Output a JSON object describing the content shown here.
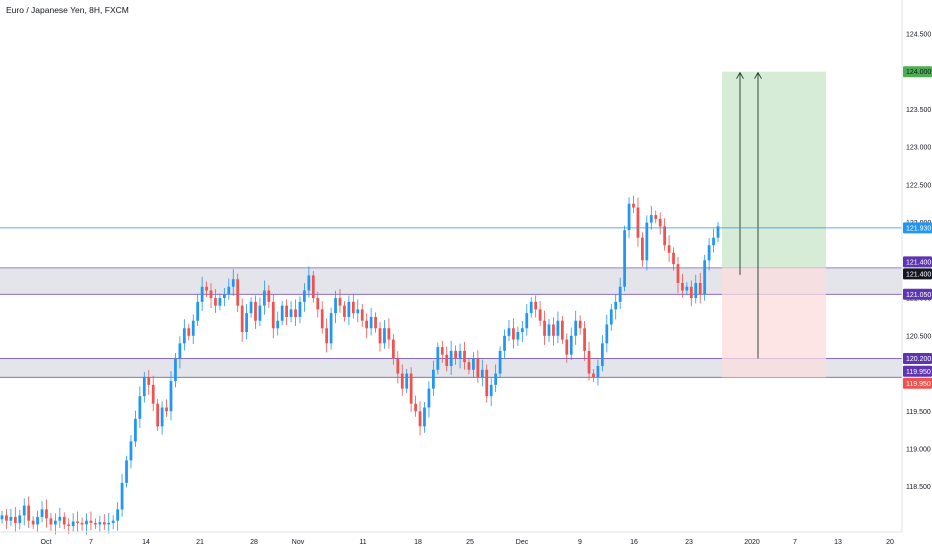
{
  "chart_title": "Euro / Japanese Yen, 8H, FXCM",
  "chart_data": {
    "type": "candlestick",
    "title": "Euro / Japanese Yen, 8H, FXCM",
    "ylim": [
      117.9,
      124.95
    ],
    "y_ticks": [
      118.5,
      119.0,
      119.5,
      120.0,
      120.5,
      121.0,
      121.5,
      122.0,
      122.5,
      123.0,
      123.5,
      124.0,
      124.5
    ],
    "y_tick_labels": [
      "118.500",
      "119.000",
      "119.500",
      "120.000",
      "120.500",
      "121.000",
      "121.500",
      "122.000",
      "122.500",
      "123.000",
      "123.500",
      "124.000",
      "124.500"
    ],
    "x_tick_labels": [
      "Oct",
      "7",
      "14",
      "21",
      "28",
      "Nov",
      "11",
      "18",
      "25",
      "Dec",
      "9",
      "16",
      "23",
      "2020",
      "7",
      "13",
      "20"
    ],
    "colors": {
      "up": "#2196f3",
      "down": "#ef5350",
      "zone_fill": "#d1d4dc",
      "zone_border": "#7e57c2",
      "hline": "#2196f3",
      "target_fill": "#c8e6c9",
      "stop_fill": "#fcdcdc"
    },
    "close_series": [
      118.12,
      118.05,
      118.1,
      118.02,
      118.12,
      118.25,
      118.05,
      118.0,
      118.1,
      118.2,
      118.08,
      118.0,
      118.05,
      118.1,
      118.0,
      117.98,
      118.04,
      118.02,
      118.0,
      118.05,
      118.02,
      118.0,
      118.03,
      118.0,
      118.02,
      118.05,
      118.2,
      118.55,
      118.85,
      119.1,
      119.4,
      119.7,
      119.95,
      119.85,
      119.6,
      119.3,
      119.55,
      119.5,
      119.9,
      120.2,
      120.4,
      120.6,
      120.5,
      120.7,
      120.95,
      121.15,
      121.1,
      121.0,
      120.9,
      121.0,
      121.05,
      121.15,
      121.25,
      120.9,
      120.55,
      120.8,
      120.95,
      120.7,
      120.9,
      121.1,
      120.95,
      120.6,
      120.7,
      120.9,
      120.75,
      120.85,
      120.75,
      120.95,
      121.1,
      121.3,
      121.0,
      120.85,
      120.6,
      120.4,
      120.8,
      121.0,
      120.9,
      120.75,
      120.95,
      120.8,
      120.85,
      120.7,
      120.6,
      120.75,
      120.6,
      120.4,
      120.6,
      120.45,
      120.2,
      120.0,
      119.8,
      120.0,
      119.6,
      119.5,
      119.3,
      119.55,
      119.8,
      120.05,
      120.35,
      120.25,
      120.1,
      120.3,
      120.2,
      120.3,
      120.15,
      120.05,
      120.2,
      119.95,
      120.05,
      119.7,
      119.85,
      120.0,
      120.3,
      120.5,
      120.6,
      120.45,
      120.55,
      120.6,
      120.8,
      120.95,
      120.85,
      120.7,
      120.5,
      120.65,
      120.5,
      120.7,
      120.45,
      120.25,
      120.5,
      120.7,
      120.6,
      120.3,
      120.0,
      119.95,
      120.1,
      120.4,
      120.65,
      120.85,
      120.95,
      121.15,
      121.9,
      122.25,
      122.2,
      121.8,
      121.5,
      122.0,
      122.1,
      122.05,
      121.95,
      121.7,
      121.6,
      121.45,
      121.2,
      121.1,
      121.15,
      121.0,
      121.2,
      121.05,
      121.5,
      121.7,
      121.8,
      121.95
    ]
  },
  "levels": [
    {
      "label": "124.000",
      "value": 124.0,
      "fill": "#4caf50",
      "color": "#131722"
    },
    {
      "label": "121.930",
      "value": 121.93,
      "fill": "#2196f3",
      "color": "#ffffff"
    },
    {
      "label": "121.400",
      "value": 121.4,
      "fill": "#5e35b1",
      "color": "#ffffff"
    },
    {
      "label": "121.400",
      "value": 121.4,
      "fill": "#131722",
      "color": "#ffffff"
    },
    {
      "label": "121.050",
      "value": 121.05,
      "fill": "#5e35b1",
      "color": "#ffffff"
    },
    {
      "label": "120.200",
      "value": 120.2,
      "fill": "#5e35b1",
      "color": "#ffffff"
    },
    {
      "label": "119.950",
      "value": 119.95,
      "fill": "#5e35b1",
      "color": "#ffffff"
    },
    {
      "label": "119.950",
      "value": 119.95,
      "fill": "#ef5350",
      "color": "#ffffff"
    }
  ],
  "zones": [
    {
      "from": 121.05,
      "to": 121.4
    },
    {
      "from": 119.95,
      "to": 120.2
    }
  ],
  "hline": 121.93,
  "position": {
    "entry": 121.4,
    "target": 124.0,
    "stop": 119.95
  }
}
